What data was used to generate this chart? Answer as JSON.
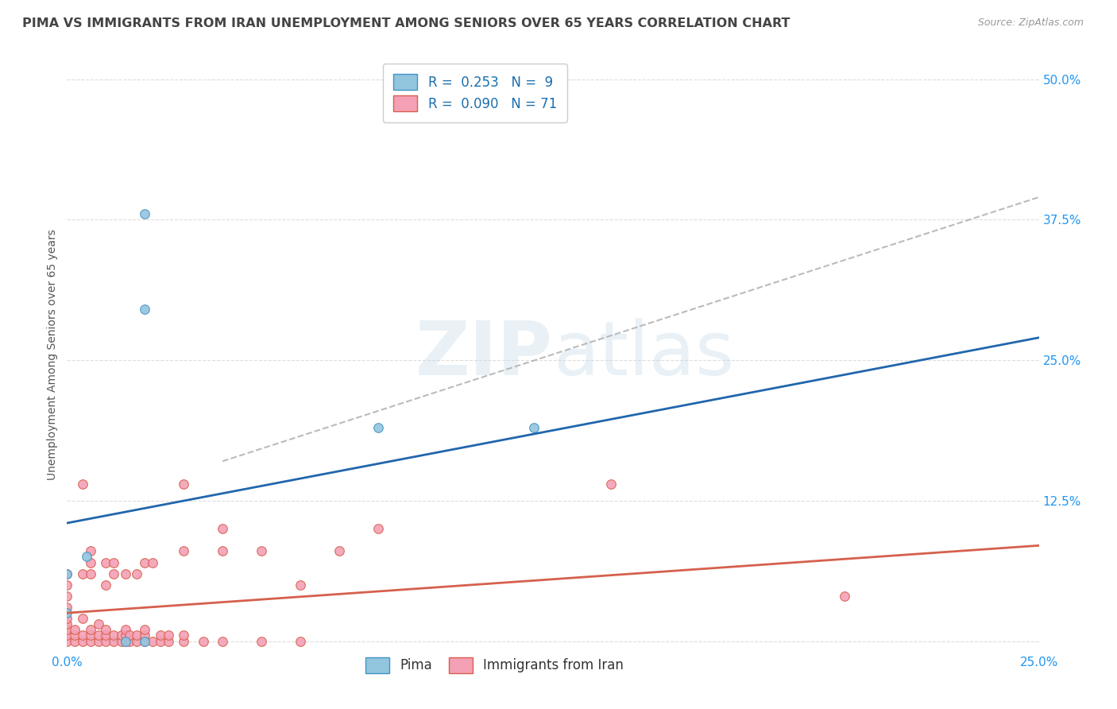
{
  "title": "PIMA VS IMMIGRANTS FROM IRAN UNEMPLOYMENT AMONG SENIORS OVER 65 YEARS CORRELATION CHART",
  "source": "Source: ZipAtlas.com",
  "ylabel": "Unemployment Among Seniors over 65 years",
  "xlim": [
    0.0,
    0.25
  ],
  "ylim": [
    -0.01,
    0.52
  ],
  "watermark": "ZIPatlas",
  "pima_color": "#92c5de",
  "iran_color": "#f4a0b5",
  "pima_edge_color": "#4393c3",
  "iran_edge_color": "#d6604d",
  "pima_line_color": "#2166ac",
  "iran_line_color": "#d6604d",
  "pima_trend": [
    0.0,
    0.25,
    0.105,
    0.27
  ],
  "iran_trend": [
    0.0,
    0.25,
    0.025,
    0.085
  ],
  "iran_dash_trend": [
    0.04,
    0.25,
    0.16,
    0.395
  ],
  "background_color": "#ffffff",
  "grid_color": "#dddddd",
  "tick_color": "#2196F3",
  "title_color": "#444444",
  "title_fontsize": 11.5,
  "axis_label_color": "#555555",
  "pima_points": [
    [
      0.0,
      0.025
    ],
    [
      0.0,
      0.06
    ],
    [
      0.005,
      0.075
    ],
    [
      0.015,
      0.0
    ],
    [
      0.02,
      0.38
    ],
    [
      0.02,
      0.295
    ],
    [
      0.02,
      0.0
    ],
    [
      0.08,
      0.19
    ],
    [
      0.12,
      0.19
    ]
  ],
  "iran_points": [
    [
      0.0,
      0.0
    ],
    [
      0.0,
      0.005
    ],
    [
      0.0,
      0.01
    ],
    [
      0.0,
      0.015
    ],
    [
      0.0,
      0.02
    ],
    [
      0.0,
      0.03
    ],
    [
      0.0,
      0.04
    ],
    [
      0.0,
      0.05
    ],
    [
      0.0,
      0.06
    ],
    [
      0.002,
      0.0
    ],
    [
      0.002,
      0.005
    ],
    [
      0.002,
      0.01
    ],
    [
      0.004,
      0.0
    ],
    [
      0.004,
      0.005
    ],
    [
      0.004,
      0.02
    ],
    [
      0.004,
      0.06
    ],
    [
      0.004,
      0.14
    ],
    [
      0.006,
      0.0
    ],
    [
      0.006,
      0.005
    ],
    [
      0.006,
      0.01
    ],
    [
      0.006,
      0.06
    ],
    [
      0.006,
      0.07
    ],
    [
      0.006,
      0.08
    ],
    [
      0.008,
      0.0
    ],
    [
      0.008,
      0.005
    ],
    [
      0.008,
      0.015
    ],
    [
      0.01,
      0.0
    ],
    [
      0.01,
      0.005
    ],
    [
      0.01,
      0.01
    ],
    [
      0.01,
      0.05
    ],
    [
      0.01,
      0.07
    ],
    [
      0.012,
      0.0
    ],
    [
      0.012,
      0.005
    ],
    [
      0.012,
      0.06
    ],
    [
      0.012,
      0.07
    ],
    [
      0.014,
      0.0
    ],
    [
      0.014,
      0.005
    ],
    [
      0.015,
      0.0
    ],
    [
      0.015,
      0.005
    ],
    [
      0.015,
      0.01
    ],
    [
      0.015,
      0.06
    ],
    [
      0.016,
      0.0
    ],
    [
      0.016,
      0.005
    ],
    [
      0.018,
      0.0
    ],
    [
      0.018,
      0.005
    ],
    [
      0.018,
      0.06
    ],
    [
      0.02,
      0.0
    ],
    [
      0.02,
      0.005
    ],
    [
      0.02,
      0.01
    ],
    [
      0.02,
      0.07
    ],
    [
      0.022,
      0.0
    ],
    [
      0.022,
      0.07
    ],
    [
      0.024,
      0.0
    ],
    [
      0.024,
      0.005
    ],
    [
      0.026,
      0.0
    ],
    [
      0.026,
      0.005
    ],
    [
      0.03,
      0.0
    ],
    [
      0.03,
      0.005
    ],
    [
      0.03,
      0.08
    ],
    [
      0.03,
      0.14
    ],
    [
      0.035,
      0.0
    ],
    [
      0.04,
      0.0
    ],
    [
      0.04,
      0.08
    ],
    [
      0.04,
      0.1
    ],
    [
      0.05,
      0.0
    ],
    [
      0.05,
      0.08
    ],
    [
      0.06,
      0.0
    ],
    [
      0.06,
      0.05
    ],
    [
      0.07,
      0.08
    ],
    [
      0.08,
      0.1
    ],
    [
      0.14,
      0.14
    ],
    [
      0.2,
      0.04
    ]
  ]
}
